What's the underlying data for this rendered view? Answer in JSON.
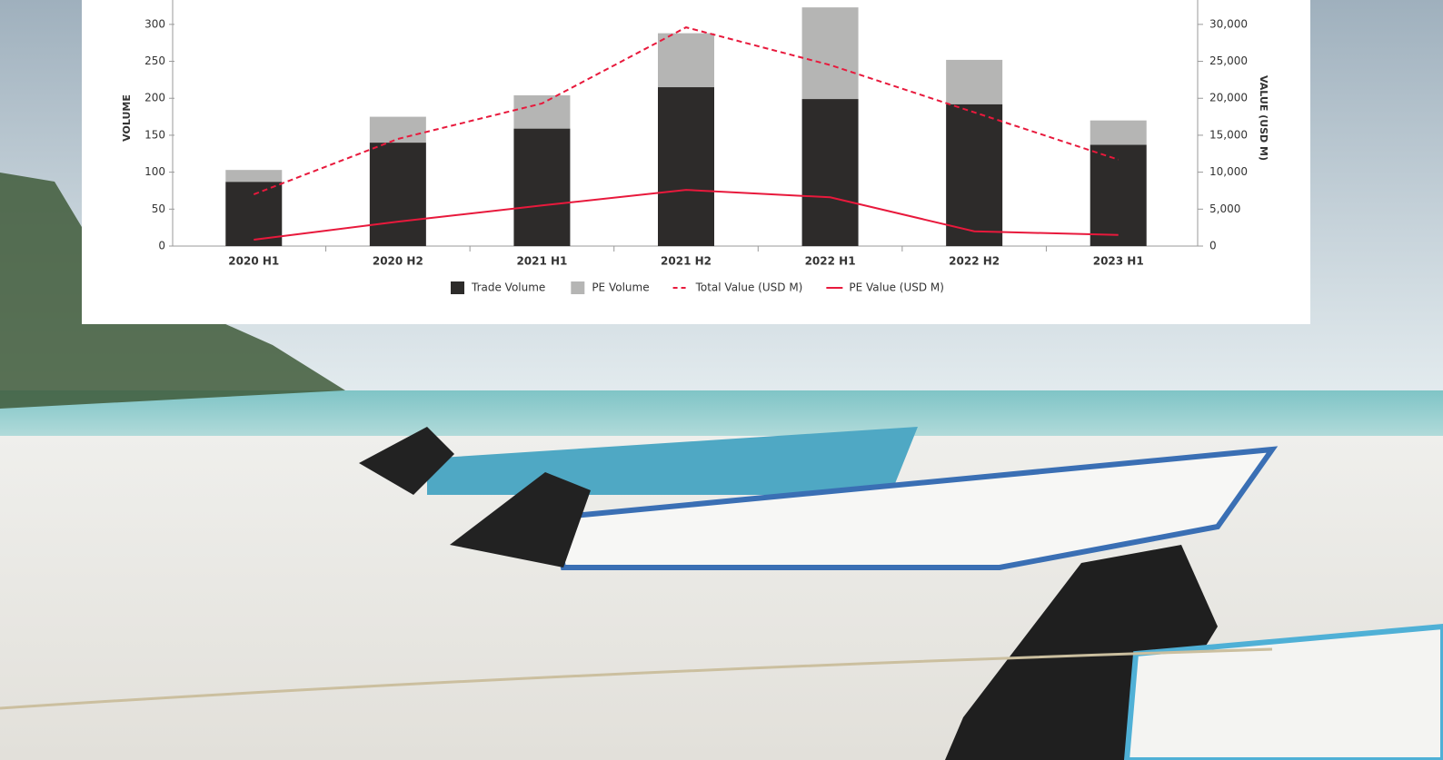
{
  "chart_data": {
    "type": "bar",
    "stacked": true,
    "categories": [
      "2020 H1",
      "2020 H2",
      "2021 H1",
      "2021 H2",
      "2022 H1",
      "2022 H2",
      "2023 H1"
    ],
    "ylabel": "VOLUME",
    "y2label": "VALUE (USD M)",
    "ylim": [
      0,
      333
    ],
    "yticks": [
      0,
      50,
      100,
      150,
      200,
      250,
      300
    ],
    "y2lim": [
      0,
      33300
    ],
    "y2ticks": [
      0,
      {
        "value": 5000,
        "label": "5,000"
      },
      {
        "value": 10000,
        "label": "10,000"
      },
      {
        "value": 15000,
        "label": "15,000"
      },
      {
        "value": 20000,
        "label": "20,000"
      },
      {
        "value": 25000,
        "label": "25,000"
      },
      {
        "value": 30000,
        "label": "30,000"
      }
    ],
    "legend": "bottom",
    "series": [
      {
        "name": "Trade Volume",
        "kind": "bar",
        "color": "#2d2b2a",
        "values": [
          87,
          140,
          159,
          215,
          199,
          192,
          137
        ]
      },
      {
        "name": "PE Volume",
        "kind": "bar",
        "color": "#b5b5b4",
        "values": [
          16,
          35,
          45,
          73,
          124,
          60,
          33
        ]
      },
      {
        "name": "Total Value (USD M)",
        "kind": "line",
        "line_style": "dashed",
        "axis": "y2",
        "color": "#e8193c",
        "values": [
          7000,
          14500,
          19300,
          29600,
          24500,
          18100,
          11700
        ]
      },
      {
        "name": "PE Value (USD M)",
        "kind": "line",
        "line_style": "solid",
        "axis": "y2",
        "color": "#e8193c",
        "values": [
          860,
          3300,
          5500,
          7600,
          6600,
          2000,
          1500
        ]
      }
    ]
  }
}
